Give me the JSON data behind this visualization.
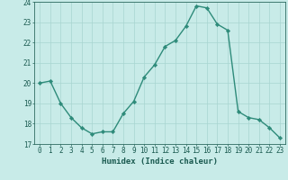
{
  "x": [
    0,
    1,
    2,
    3,
    4,
    5,
    6,
    7,
    8,
    9,
    10,
    11,
    12,
    13,
    14,
    15,
    16,
    17,
    18,
    19,
    20,
    21,
    22,
    23
  ],
  "y": [
    20.0,
    20.1,
    19.0,
    18.3,
    17.8,
    17.5,
    17.6,
    17.6,
    18.5,
    19.1,
    20.3,
    20.9,
    21.8,
    22.1,
    22.8,
    23.8,
    23.7,
    22.9,
    22.6,
    18.6,
    18.3,
    18.2,
    17.8,
    17.3
  ],
  "line_color": "#2e8b7a",
  "marker": "D",
  "marker_size": 2.2,
  "bg_color": "#c8ebe8",
  "grid_color": "#a8d5d0",
  "xlabel": "Humidex (Indice chaleur)",
  "ylabel": "",
  "xlim": [
    -0.5,
    23.5
  ],
  "ylim": [
    17,
    24
  ],
  "yticks": [
    17,
    18,
    19,
    20,
    21,
    22,
    23,
    24
  ],
  "xticks": [
    0,
    1,
    2,
    3,
    4,
    5,
    6,
    7,
    8,
    9,
    10,
    11,
    12,
    13,
    14,
    15,
    16,
    17,
    18,
    19,
    20,
    21,
    22,
    23
  ],
  "tick_fontsize": 5.5,
  "xlabel_fontsize": 6.5,
  "line_width": 1.0,
  "line_color_dark": "#1a6b5a",
  "spine_color": "#2e6b60",
  "text_color": "#1a5a50"
}
